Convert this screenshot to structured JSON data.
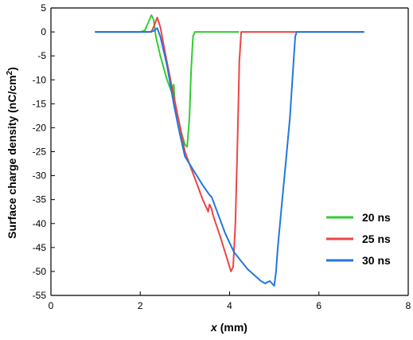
{
  "chart_data": {
    "type": "line",
    "title": "",
    "xlabel_var": "x",
    "xlabel_unit": " (mm)",
    "ylabel": "Surface charge density (nC/cm",
    "ylabel_sup": "2",
    "ylabel_close": ")",
    "xlim": [
      0,
      8
    ],
    "ylim": [
      -55,
      5
    ],
    "xticks": [
      "0",
      "2",
      "4",
      "6",
      "8"
    ],
    "yticks": [
      "5",
      "0",
      "-5",
      "-10",
      "-15",
      "-20",
      "-25",
      "-30",
      "-35",
      "-40",
      "-45",
      "-50",
      "-55"
    ],
    "grid": false,
    "legend_position": "lower-right",
    "series": [
      {
        "name": "20 ns",
        "color": "#33cc33",
        "x": [
          1.0,
          2.0,
          2.1,
          2.18,
          2.25,
          2.3,
          2.35,
          2.45,
          2.6,
          2.72,
          2.75,
          2.78,
          2.85,
          2.92,
          3.0,
          3.05,
          3.1,
          3.14,
          3.18,
          3.22,
          3.3,
          3.6,
          4.2
        ],
        "y": [
          0,
          0,
          0.3,
          2.0,
          3.5,
          2.5,
          -1.0,
          -5.0,
          -10.0,
          -13.0,
          -11.0,
          -15.5,
          -18.0,
          -21.0,
          -23.5,
          -24.0,
          -18.0,
          -8.0,
          -1.0,
          0,
          0,
          0,
          0
        ]
      },
      {
        "name": "25 ns",
        "color": "#ee4444",
        "x": [
          1.0,
          2.25,
          2.32,
          2.38,
          2.45,
          2.55,
          2.7,
          2.85,
          3.0,
          3.2,
          3.4,
          3.52,
          3.55,
          3.6,
          3.62,
          3.8,
          3.95,
          4.03,
          4.08,
          4.13,
          4.18,
          4.22,
          4.26,
          4.35,
          5.0,
          7.0
        ],
        "y": [
          0,
          0,
          1.5,
          3.0,
          1.0,
          -4.0,
          -11.0,
          -18.0,
          -25.0,
          -30.0,
          -35.0,
          -37.5,
          -36.0,
          -37.0,
          -38.0,
          -43.0,
          -47.5,
          -50.0,
          -49.0,
          -40.0,
          -22.0,
          -6.0,
          0,
          0,
          0,
          0
        ]
      },
      {
        "name": "30 ns",
        "color": "#2277dd",
        "x": [
          1.0,
          2.2,
          2.3,
          2.38,
          2.45,
          2.6,
          2.75,
          2.88,
          3.0,
          3.2,
          3.4,
          3.55,
          3.6,
          3.7,
          3.9,
          4.1,
          4.4,
          4.7,
          4.8,
          4.9,
          5.0,
          5.04,
          5.08,
          5.15,
          5.25,
          5.35,
          5.42,
          5.47,
          5.5,
          6.0,
          6.5,
          7.0
        ],
        "y": [
          0,
          0,
          0.2,
          0.8,
          -1.0,
          -7.0,
          -15.0,
          -21.0,
          -26.0,
          -29.0,
          -32.0,
          -34.0,
          -34.5,
          -37.0,
          -42.0,
          -46.0,
          -49.5,
          -52.0,
          -52.5,
          -52.0,
          -53.0,
          -50.0,
          -45.0,
          -38.0,
          -28.0,
          -18.0,
          -8.0,
          -1.0,
          0,
          0,
          0,
          0
        ]
      }
    ]
  }
}
